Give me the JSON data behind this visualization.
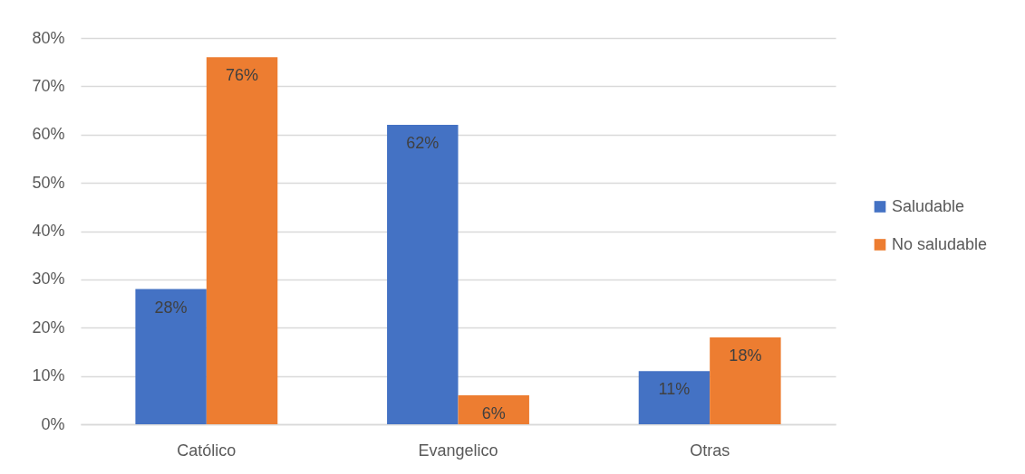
{
  "chart_data": {
    "type": "bar",
    "categories": [
      "Católico",
      "Evangelico",
      "Otras"
    ],
    "series": [
      {
        "name": "Saludable",
        "color": "#4472c4",
        "values": [
          28,
          62,
          11
        ],
        "value_labels": [
          "28%",
          "62%",
          "11%"
        ]
      },
      {
        "name": "No saludable",
        "color": "#ed7d31",
        "values": [
          76,
          6,
          18
        ],
        "value_labels": [
          "76%",
          "6%",
          "18%"
        ]
      }
    ],
    "ylim": [
      0,
      80
    ],
    "yticks": [
      {
        "value": 0,
        "label": "0%"
      },
      {
        "value": 10,
        "label": "10%"
      },
      {
        "value": 20,
        "label": "20%"
      },
      {
        "value": 30,
        "label": "30%"
      },
      {
        "value": 40,
        "label": "40%"
      },
      {
        "value": 50,
        "label": "50%"
      },
      {
        "value": 60,
        "label": "60%"
      },
      {
        "value": 70,
        "label": "70%"
      },
      {
        "value": 80,
        "label": "80%"
      }
    ],
    "grid": "y",
    "legend": "right"
  }
}
